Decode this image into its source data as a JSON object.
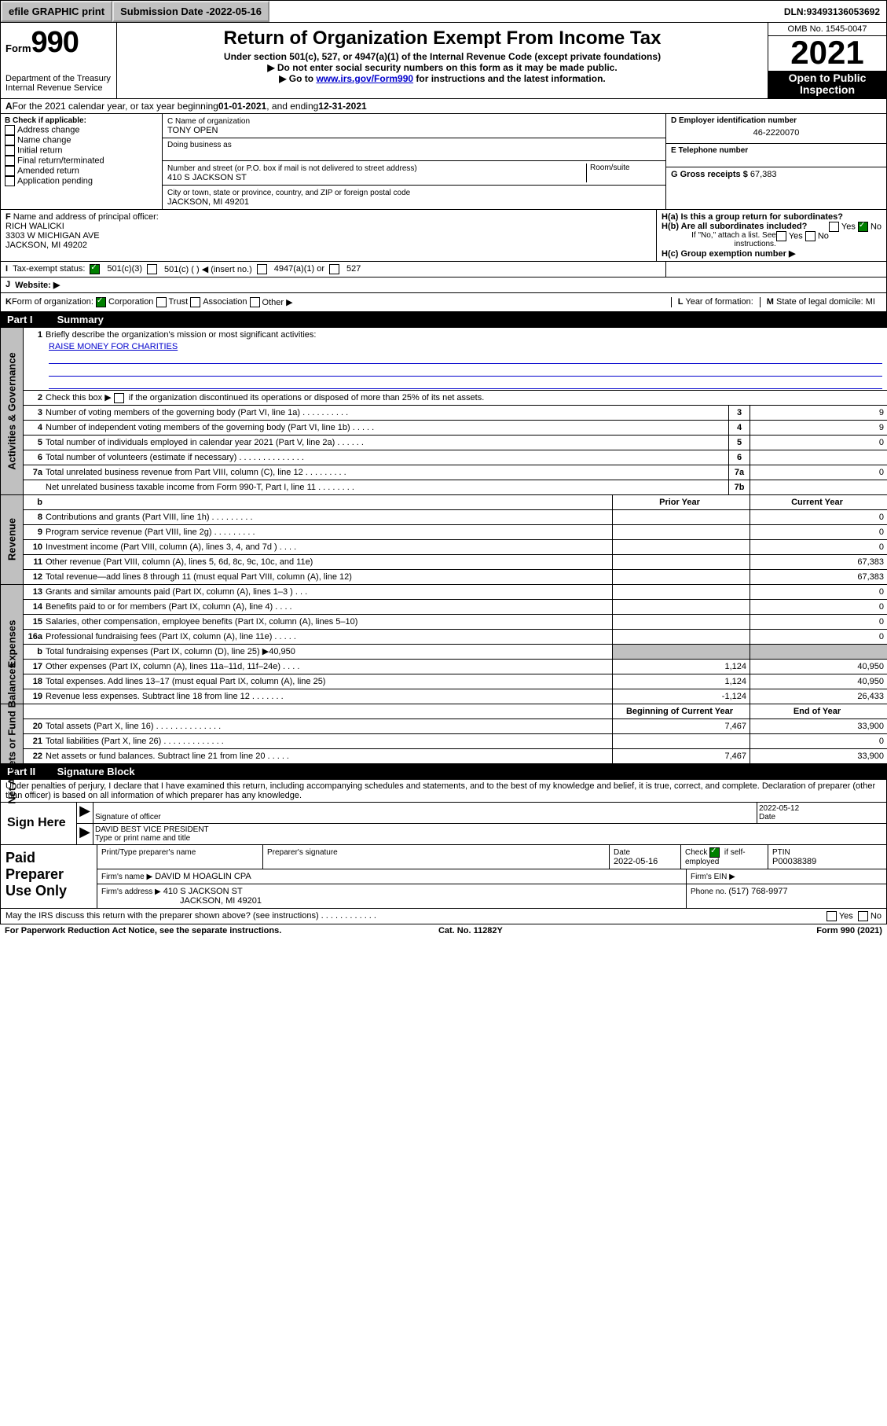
{
  "topbar": {
    "efile": "efile GRAPHIC print",
    "subdate_label": "Submission Date - ",
    "subdate": "2022-05-16",
    "dln_label": "DLN: ",
    "dln": "93493136053692"
  },
  "header": {
    "form_prefix": "Form",
    "form_num": "990",
    "dept": "Department of the Treasury Internal Revenue Service",
    "title": "Return of Organization Exempt From Income Tax",
    "subtitle": "Under section 501(c), 527, or 4947(a)(1) of the Internal Revenue Code (except private foundations)",
    "line2": "▶ Do not enter social security numbers on this form as it may be made public.",
    "line3_pre": "▶ Go to ",
    "line3_link": "www.irs.gov/Form990",
    "line3_post": " for instructions and the latest information.",
    "omb": "OMB No. 1545-0047",
    "year": "2021",
    "open1": "Open to Public",
    "open2": "Inspection"
  },
  "section_a": {
    "text_a": "A",
    "text": " For the 2021 calendar year, or tax year beginning ",
    "begin": "01-01-2021",
    "mid": " , and ending ",
    "end": "12-31-2021"
  },
  "col_b": {
    "label": "B Check if applicable:",
    "items": [
      "Address change",
      "Name change",
      "Initial return",
      "Final return/terminated",
      "Amended return",
      "Application pending"
    ]
  },
  "col_c": {
    "name_label": "C Name of organization",
    "name": "TONY OPEN",
    "dba_label": "Doing business as",
    "dba": "",
    "street_label": "Number and street (or P.O. box if mail is not delivered to street address)",
    "street": "410 S JACKSON ST",
    "room_label": "Room/suite",
    "city_label": "City or town, state or province, country, and ZIP or foreign postal code",
    "city": "JACKSON, MI 49201"
  },
  "col_d": {
    "ein_label": "D Employer identification number",
    "ein": "46-2220070",
    "phone_label": "E Telephone number",
    "phone": "",
    "gross_label": "G Gross receipts $ ",
    "gross": "67,383"
  },
  "col_f": {
    "label": "F",
    "text": " Name and address of principal officer:",
    "name": "RICH WALICKI",
    "addr1": "3303 W MICHIGAN AVE",
    "addr2": "JACKSON, MI 49202"
  },
  "col_h": {
    "ha": "H(a) Is this a group return for subordinates?",
    "ha_yes": "Yes",
    "ha_no": "No",
    "hb": "H(b) Are all subordinates included?",
    "hb_yes": "Yes",
    "hb_no": "No",
    "hnote": "If \"No,\" attach a list. See instructions.",
    "hc": "H(c) Group exemption number ▶"
  },
  "row_i": {
    "label": "I",
    "text": "Tax-exempt status:",
    "o1": "501(c)(3)",
    "o2": "501(c) (  ) ◀ (insert no.)",
    "o3": "4947(a)(1) or",
    "o4": "527"
  },
  "row_j": {
    "label": "J",
    "text": "Website: ▶"
  },
  "row_k": {
    "label": "K",
    "text": " Form of organization:",
    "o1": "Corporation",
    "o2": "Trust",
    "o3": "Association",
    "o4": "Other ▶",
    "l_label": "L",
    "l_text": " Year of formation:",
    "m_label": "M",
    "m_text": " State of legal domicile: ",
    "m_val": "MI"
  },
  "part1": {
    "label": "Part I",
    "title": "Summary"
  },
  "summary": {
    "mission_label": "Briefly describe the organization's mission or most significant activities:",
    "mission": "RAISE MONEY FOR CHARITIES",
    "l2": "Check this box ▶",
    "l2b": " if the organization discontinued its operations or disposed of more than 25% of its net assets.",
    "lines_gov": [
      {
        "n": "3",
        "t": "Number of voting members of the governing body (Part VI, line 1a)  .   .   .   .   .   .   .   .   .   .",
        "box": "3",
        "v": "9"
      },
      {
        "n": "4",
        "t": "Number of independent voting members of the governing body (Part VI, line 1b)  .   .   .   .   .",
        "box": "4",
        "v": "9"
      },
      {
        "n": "5",
        "t": "Total number of individuals employed in calendar year 2021 (Part V, line 2a)  .   .   .   .   .   .",
        "box": "5",
        "v": "0"
      },
      {
        "n": "6",
        "t": "Total number of volunteers (estimate if necessary)  .   .   .   .   .   .   .   .   .   .   .   .   .   .",
        "box": "6",
        "v": ""
      },
      {
        "n": "7a",
        "t": "Total unrelated business revenue from Part VIII, column (C), line 12  .   .   .   .   .   .   .   .   .",
        "box": "7a",
        "v": "0"
      },
      {
        "n": "",
        "t": "Net unrelated business taxable income from Form 990-T, Part I, line 11  .   .   .   .   .   .   .   .",
        "box": "7b",
        "v": ""
      }
    ],
    "hdr_prior": "Prior Year",
    "hdr_curr": "Current Year",
    "lines_rev": [
      {
        "n": "8",
        "t": "Contributions and grants (Part VIII, line 1h)  .   .   .   .   .   .   .   .   .",
        "v1": "",
        "v2": "0"
      },
      {
        "n": "9",
        "t": "Program service revenue (Part VIII, line 2g)  .   .   .   .   .   .   .   .   .",
        "v1": "",
        "v2": "0"
      },
      {
        "n": "10",
        "t": "Investment income (Part VIII, column (A), lines 3, 4, and 7d )   .   .   .   .",
        "v1": "",
        "v2": "0"
      },
      {
        "n": "11",
        "t": "Other revenue (Part VIII, column (A), lines 5, 6d, 8c, 9c, 10c, and 11e)",
        "v1": "",
        "v2": "67,383"
      },
      {
        "n": "12",
        "t": "Total revenue—add lines 8 through 11 (must equal Part VIII, column (A), line 12)",
        "v1": "",
        "v2": "67,383"
      }
    ],
    "lines_exp": [
      {
        "n": "13",
        "t": "Grants and similar amounts paid (Part IX, column (A), lines 1–3 )   .   .   .",
        "v1": "",
        "v2": "0"
      },
      {
        "n": "14",
        "t": "Benefits paid to or for members (Part IX, column (A), line 4)   .   .   .   .",
        "v1": "",
        "v2": "0"
      },
      {
        "n": "15",
        "t": "Salaries, other compensation, employee benefits (Part IX, column (A), lines 5–10)",
        "v1": "",
        "v2": "0"
      },
      {
        "n": "16a",
        "t": "Professional fundraising fees (Part IX, column (A), line 11e)   .   .   .   .   .",
        "v1": "",
        "v2": "0"
      },
      {
        "n": "b",
        "t": "Total fundraising expenses (Part IX, column (D), line 25) ▶40,950",
        "grey": true
      },
      {
        "n": "17",
        "t": "Other expenses (Part IX, column (A), lines 11a–11d, 11f–24e)   .   .   .   .",
        "v1": "1,124",
        "v2": "40,950"
      },
      {
        "n": "18",
        "t": "Total expenses. Add lines 13–17 (must equal Part IX, column (A), line 25)",
        "v1": "1,124",
        "v2": "40,950"
      },
      {
        "n": "19",
        "t": "Revenue less expenses. Subtract line 18 from line 12   .   .   .   .   .   .   .",
        "v1": "-1,124",
        "v2": "26,433"
      }
    ],
    "hdr_begin": "Beginning of Current Year",
    "hdr_end": "End of Year",
    "lines_net": [
      {
        "n": "20",
        "t": "Total assets (Part X, line 16)  .   .   .   .   .   .   .   .   .   .   .   .   .   .",
        "v1": "7,467",
        "v2": "33,900"
      },
      {
        "n": "21",
        "t": "Total liabilities (Part X, line 26)   .   .   .   .   .   .   .   .   .   .   .   .   .",
        "v1": "",
        "v2": "0"
      },
      {
        "n": "22",
        "t": "Net assets or fund balances. Subtract line 21 from line 20   .   .   .   .   .",
        "v1": "7,467",
        "v2": "33,900"
      }
    ]
  },
  "part2": {
    "label": "Part II",
    "title": "Signature Block"
  },
  "sig": {
    "penalty": "Under penalties of perjury, I declare that I have examined this return, including accompanying schedules and statements, and to the best of my knowledge and belief, it is true, correct, and complete. Declaration of preparer (other than officer) is based on all information of which preparer has any knowledge.",
    "sign_here": "Sign Here",
    "sig_officer": "Signature of officer",
    "date": "Date",
    "date_val": "2022-05-12",
    "name_title": "DAVID BEST  VICE PRESIDENT",
    "name_label": "Type or print name and title"
  },
  "paid": {
    "label": "Paid Preparer Use Only",
    "h1": "Print/Type preparer's name",
    "h2": "Preparer's signature",
    "h3": "Date",
    "h3v": "2022-05-16",
    "h4a": "Check",
    "h4b": " if self-employed",
    "h5": "PTIN",
    "h5v": "P00038389",
    "firm_label": "Firm's name   ▶",
    "firm": "DAVID M HOAGLIN CPA",
    "ein_label": "Firm's EIN ▶",
    "addr_label": "Firm's address ▶",
    "addr1": "410 S JACKSON ST",
    "addr2": "JACKSON, MI 49201",
    "phone_label": "Phone no. ",
    "phone": "(517) 768-9977"
  },
  "footer": {
    "discuss": "May the IRS discuss this return with the preparer shown above? (see instructions)   .   .   .   .   .   .   .   .   .   .   .   .",
    "yes": "Yes",
    "no": "No",
    "pra": "For Paperwork Reduction Act Notice, see the separate instructions.",
    "cat": "Cat. No. 11282Y",
    "form": "Form 990 (2021)"
  },
  "vtabs": {
    "gov": "Activities & Governance",
    "rev": "Revenue",
    "exp": "Expenses",
    "net": "Net Assets or Fund Balances"
  }
}
